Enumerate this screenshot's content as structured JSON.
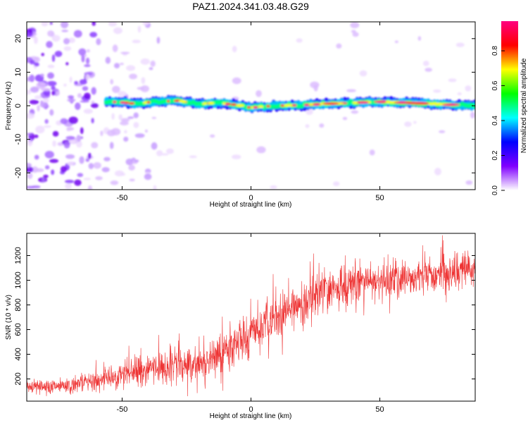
{
  "title": "PAZ1.2024.341.03.48.G29",
  "chart_data": [
    {
      "type": "heatmap",
      "xlabel": "Height of straight line (km)",
      "ylabel": "Frequency (Hz)",
      "xlim": [
        -87,
        87
      ],
      "ylim": [
        -25,
        25
      ],
      "xticks": [
        "-50",
        "0",
        "50"
      ],
      "yticks": [
        "-20",
        "-10",
        "0",
        "10",
        "20"
      ],
      "colorbar": {
        "label": "Normalized spectral amplitude",
        "range": [
          0,
          0.97
        ],
        "ticks": [
          "0.0",
          "0.2",
          "0.4",
          "0.6",
          "0.8"
        ],
        "colormap": [
          "#ffffff",
          "#8000ff",
          "#0000ff",
          "#00ffff",
          "#00ff00",
          "#ffff00",
          "#ff0000",
          "#ff0080"
        ]
      },
      "ridge": [
        {
          "x": -55,
          "f": 1.2
        },
        {
          "x": -50,
          "f": 1.0
        },
        {
          "x": -45,
          "f": 0.6
        },
        {
          "x": -40,
          "f": 1.0
        },
        {
          "x": -35,
          "f": 1.3
        },
        {
          "x": -28,
          "f": 1.5
        },
        {
          "x": -20,
          "f": 0.5
        },
        {
          "x": -15,
          "f": 0.8
        },
        {
          "x": -10,
          "f": 0.6
        },
        {
          "x": -5,
          "f": 0.2
        },
        {
          "x": 0,
          "f": -0.6
        },
        {
          "x": 5,
          "f": -0.2
        },
        {
          "x": 10,
          "f": 0.0
        },
        {
          "x": 20,
          "f": 0.2
        },
        {
          "x": 30,
          "f": 0.6
        },
        {
          "x": 40,
          "f": 0.9
        },
        {
          "x": 50,
          "f": 1.2
        },
        {
          "x": 60,
          "f": 0.9
        },
        {
          "x": 70,
          "f": 0.6
        },
        {
          "x": 80,
          "f": 0.2
        },
        {
          "x": 87,
          "f": 0.0
        }
      ]
    },
    {
      "type": "line",
      "xlabel": "Height of straight line (km)",
      "ylabel": "SNR (10 * v/v)",
      "xlim": [
        -87,
        87
      ],
      "ylim": [
        20,
        1380
      ],
      "xticks": [
        "-50",
        "0",
        "50"
      ],
      "yticks": [
        "200",
        "400",
        "600",
        "800",
        "1000",
        "1200"
      ],
      "color": "#ee3333",
      "trend": [
        {
          "x": -87,
          "y": 140
        },
        {
          "x": -70,
          "y": 150
        },
        {
          "x": -60,
          "y": 180
        },
        {
          "x": -50,
          "y": 240
        },
        {
          "x": -40,
          "y": 280
        },
        {
          "x": -30,
          "y": 310
        },
        {
          "x": -20,
          "y": 330
        },
        {
          "x": -10,
          "y": 430
        },
        {
          "x": 0,
          "y": 560
        },
        {
          "x": 10,
          "y": 690
        },
        {
          "x": 20,
          "y": 830
        },
        {
          "x": 30,
          "y": 920
        },
        {
          "x": 40,
          "y": 970
        },
        {
          "x": 50,
          "y": 990
        },
        {
          "x": 60,
          "y": 1020
        },
        {
          "x": 70,
          "y": 1040
        },
        {
          "x": 80,
          "y": 1070
        },
        {
          "x": 87,
          "y": 1090
        }
      ],
      "noise": [
        {
          "x": -87,
          "y": 50
        },
        {
          "x": -60,
          "y": 70
        },
        {
          "x": -40,
          "y": 120
        },
        {
          "x": -10,
          "y": 160
        },
        {
          "x": 20,
          "y": 170
        },
        {
          "x": 60,
          "y": 140
        },
        {
          "x": 87,
          "y": 140
        }
      ]
    }
  ]
}
